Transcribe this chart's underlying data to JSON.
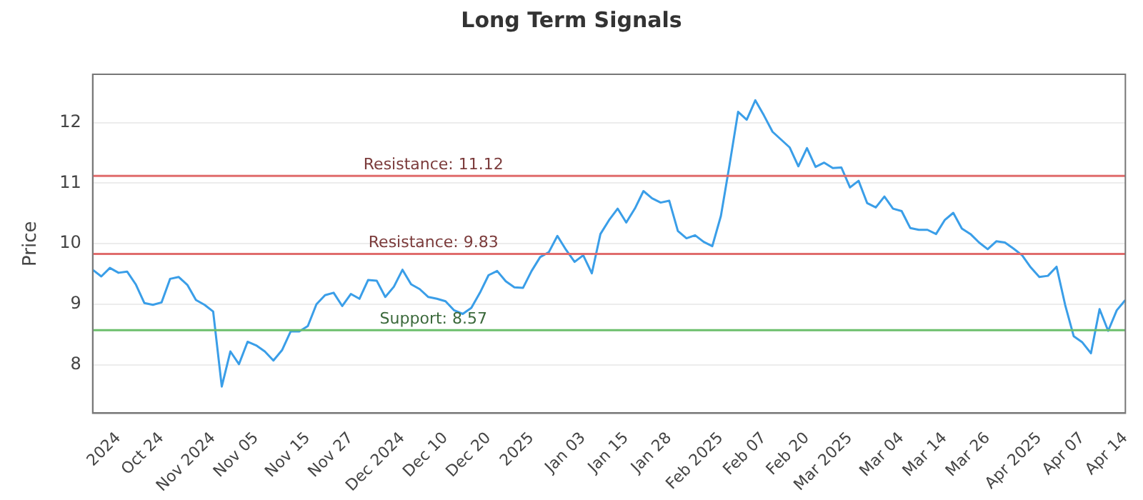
{
  "chart_data": {
    "type": "line",
    "title": "Long Term Signals",
    "ylabel": "Price",
    "categories": [
      null,
      null,
      null,
      "2024",
      null,
      null,
      null,
      null,
      "Oct 24",
      null,
      null,
      null,
      null,
      null,
      "Nov 2024",
      null,
      null,
      null,
      null,
      "Nov 05",
      null,
      null,
      null,
      null,
      null,
      "Nov 15",
      null,
      null,
      null,
      null,
      "Nov 27",
      null,
      null,
      null,
      null,
      null,
      "Dec 2024",
      null,
      null,
      null,
      null,
      "Dec 10",
      null,
      null,
      null,
      null,
      "Dec 20",
      null,
      null,
      null,
      null,
      "2025",
      null,
      null,
      null,
      null,
      null,
      "Jan 03",
      null,
      null,
      null,
      null,
      "Jan 15",
      null,
      null,
      null,
      null,
      "Jan 28",
      null,
      null,
      null,
      null,
      null,
      "Feb 2025",
      null,
      null,
      null,
      null,
      "Feb 07",
      null,
      null,
      null,
      null,
      "Feb 20",
      null,
      null,
      null,
      null,
      "Mar 2025",
      null,
      null,
      null,
      null,
      null,
      "Mar 04",
      null,
      null,
      null,
      null,
      "Mar 14",
      null,
      null,
      null,
      null,
      "Mar 26",
      null,
      null,
      null,
      null,
      null,
      "Apr 2025",
      null,
      null,
      null,
      null,
      "Apr 07",
      null,
      null,
      null,
      null,
      "Apr 14"
    ],
    "series": [
      {
        "color": "#3a9ee8",
        "values": [
          9.57,
          9.46,
          9.6,
          9.52,
          9.54,
          9.33,
          9.02,
          8.99,
          9.03,
          9.42,
          9.45,
          9.32,
          9.07,
          8.99,
          8.88,
          7.64,
          8.22,
          8.01,
          8.38,
          8.32,
          8.22,
          8.07,
          8.24,
          8.55,
          8.55,
          8.64,
          9.0,
          9.15,
          9.19,
          8.97,
          9.17,
          9.09,
          9.4,
          9.39,
          9.12,
          9.29,
          9.57,
          9.33,
          9.25,
          9.12,
          9.09,
          9.05,
          8.9,
          8.84,
          8.94,
          9.19,
          9.48,
          9.55,
          9.38,
          9.28,
          9.27,
          9.55,
          9.78,
          9.86,
          10.13,
          9.9,
          9.7,
          9.81,
          9.51,
          10.16,
          10.39,
          10.58,
          10.35,
          10.58,
          10.87,
          10.75,
          10.68,
          10.71,
          10.21,
          10.09,
          10.14,
          10.03,
          9.96,
          10.46,
          11.3,
          12.18,
          12.05,
          12.37,
          12.12,
          11.85,
          11.72,
          11.59,
          11.28,
          11.58,
          11.27,
          11.34,
          11.25,
          11.26,
          10.93,
          11.04,
          10.67,
          10.6,
          10.78,
          10.58,
          10.54,
          10.26,
          10.23,
          10.23,
          10.16,
          10.39,
          10.51,
          10.25,
          10.16,
          10.02,
          9.91,
          10.04,
          10.02,
          9.92,
          9.81,
          9.61,
          9.45,
          9.47,
          9.62,
          8.99,
          8.47,
          8.37,
          8.19,
          8.92,
          8.56,
          8.9,
          9.07
        ]
      }
    ],
    "ylim": [
      7.2,
      12.8
    ],
    "yticks": [
      8,
      9,
      10,
      11,
      12
    ],
    "grid": "y",
    "legend": false,
    "marker": "none",
    "line_style": "solid",
    "ref_lines": [
      {
        "axis": "y",
        "value": 11.12,
        "label": "Resistance: 11.12",
        "color": "#e06c6c"
      },
      {
        "axis": "y",
        "value": 9.83,
        "label": "Resistance: 9.83",
        "color": "#e06c6c"
      },
      {
        "axis": "y",
        "value": 8.57,
        "label": "Support: 8.57",
        "color": "#6cbf6c"
      }
    ]
  }
}
